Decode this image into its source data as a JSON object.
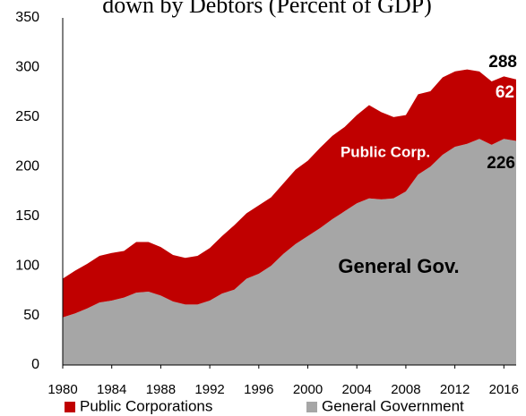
{
  "chart_data": {
    "type": "stacked-area",
    "title": "down by Debtors (Percent of GDP)",
    "x": [
      1980,
      1981,
      1982,
      1983,
      1984,
      1985,
      1986,
      1987,
      1988,
      1989,
      1990,
      1991,
      1992,
      1993,
      1994,
      1995,
      1996,
      1997,
      1998,
      1999,
      2000,
      2001,
      2002,
      2003,
      2004,
      2005,
      2006,
      2007,
      2008,
      2009,
      2010,
      2011,
      2012,
      2013,
      2014,
      2015,
      2016,
      2017
    ],
    "series": [
      {
        "name": "Public Corporations",
        "color": "#c00000",
        "values": [
          39,
          43,
          45,
          47,
          48,
          47,
          51,
          50,
          49,
          47,
          47,
          49,
          53,
          58,
          65,
          66,
          69,
          69,
          71,
          75,
          76,
          81,
          84,
          85,
          89,
          94,
          88,
          82,
          77,
          81,
          76,
          78,
          76,
          75,
          68,
          64,
          63,
          62
        ],
        "value_labels": [
          null,
          null,
          null,
          null,
          null,
          null,
          null,
          null,
          null,
          null,
          null,
          null,
          null,
          null,
          null,
          null,
          null,
          null,
          null,
          null,
          null,
          null,
          null,
          null,
          null,
          null,
          null,
          null,
          null,
          null,
          null,
          null,
          null,
          null,
          null,
          null,
          null,
          "62"
        ]
      },
      {
        "name": "General Government",
        "color": "#a6a6a6",
        "values": [
          48,
          52,
          57,
          63,
          65,
          68,
          73,
          74,
          70,
          64,
          61,
          61,
          65,
          72,
          76,
          87,
          92,
          100,
          112,
          122,
          130,
          138,
          147,
          155,
          163,
          168,
          167,
          168,
          175,
          192,
          200,
          212,
          220,
          223,
          228,
          222,
          228,
          226
        ],
        "value_labels": [
          null,
          null,
          null,
          null,
          null,
          null,
          null,
          null,
          null,
          null,
          null,
          null,
          null,
          null,
          null,
          null,
          null,
          null,
          null,
          null,
          null,
          null,
          null,
          null,
          null,
          null,
          null,
          null,
          null,
          null,
          null,
          null,
          null,
          null,
          null,
          null,
          null,
          "226"
        ]
      }
    ],
    "total_label": "288",
    "annotations": [
      "Public Corp.",
      "General Gov."
    ],
    "xlim": [
      1980,
      2017
    ],
    "xticks": [
      1980,
      1984,
      1988,
      1992,
      1996,
      2000,
      2004,
      2008,
      2012,
      2016
    ],
    "ylim": [
      0,
      350
    ],
    "yticks": [
      0,
      50,
      100,
      150,
      200,
      250,
      300,
      350
    ],
    "grid": false,
    "legend": "bottom"
  }
}
